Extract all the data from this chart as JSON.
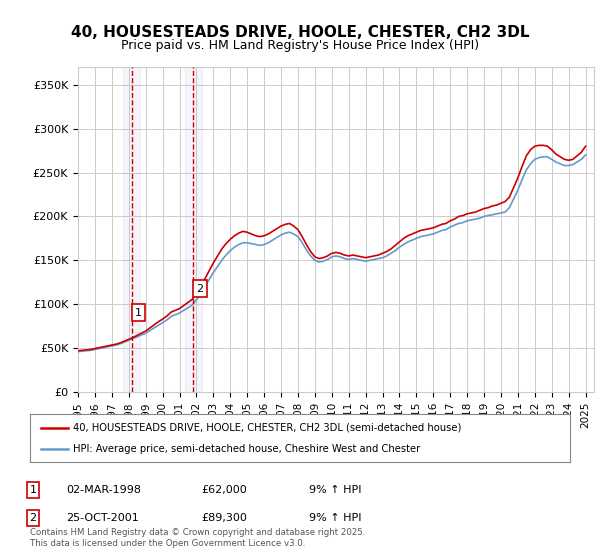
{
  "title": "40, HOUSESTEADS DRIVE, HOOLE, CHESTER, CH2 3DL",
  "subtitle": "Price paid vs. HM Land Registry's House Price Index (HPI)",
  "ylabel_ticks": [
    "£0",
    "£50K",
    "£100K",
    "£150K",
    "£200K",
    "£250K",
    "£300K",
    "£350K"
  ],
  "ytick_values": [
    0,
    50000,
    100000,
    150000,
    200000,
    250000,
    300000,
    350000
  ],
  "ylim": [
    0,
    370000
  ],
  "xlim_start": 1995.0,
  "xlim_end": 2025.5,
  "line1_color": "#cc0000",
  "line2_color": "#6699cc",
  "marker1_date": 1998.17,
  "marker2_date": 2001.81,
  "marker1_price": 62000,
  "marker2_price": 89300,
  "sale1_label": "02-MAR-1998",
  "sale1_price": "£62,000",
  "sale1_hpi": "9% ↑ HPI",
  "sale2_label": "25-OCT-2001",
  "sale2_price": "£89,300",
  "sale2_hpi": "9% ↑ HPI",
  "legend1_text": "40, HOUSESTEADS DRIVE, HOOLE, CHESTER, CH2 3DL (semi-detached house)",
  "legend2_text": "HPI: Average price, semi-detached house, Cheshire West and Chester",
  "footer_text": "Contains HM Land Registry data © Crown copyright and database right 2025.\nThis data is licensed under the Open Government Licence v3.0.",
  "background_color": "#ffffff",
  "grid_color": "#cccccc",
  "hpi_years": [
    1995.0,
    1995.25,
    1995.5,
    1995.75,
    1996.0,
    1996.25,
    1996.5,
    1996.75,
    1997.0,
    1997.25,
    1997.5,
    1997.75,
    1998.0,
    1998.25,
    1998.5,
    1998.75,
    1999.0,
    1999.25,
    1999.5,
    1999.75,
    2000.0,
    2000.25,
    2000.5,
    2000.75,
    2001.0,
    2001.25,
    2001.5,
    2001.75,
    2002.0,
    2002.25,
    2002.5,
    2002.75,
    2003.0,
    2003.25,
    2003.5,
    2003.75,
    2004.0,
    2004.25,
    2004.5,
    2004.75,
    2005.0,
    2005.25,
    2005.5,
    2005.75,
    2006.0,
    2006.25,
    2006.5,
    2006.75,
    2007.0,
    2007.25,
    2007.5,
    2007.75,
    2008.0,
    2008.25,
    2008.5,
    2008.75,
    2009.0,
    2009.25,
    2009.5,
    2009.75,
    2010.0,
    2010.25,
    2010.5,
    2010.75,
    2011.0,
    2011.25,
    2011.5,
    2011.75,
    2012.0,
    2012.25,
    2012.5,
    2012.75,
    2013.0,
    2013.25,
    2013.5,
    2013.75,
    2014.0,
    2014.25,
    2014.5,
    2014.75,
    2015.0,
    2015.25,
    2015.5,
    2015.75,
    2016.0,
    2016.25,
    2016.5,
    2016.75,
    2017.0,
    2017.25,
    2017.5,
    2017.75,
    2018.0,
    2018.25,
    2018.5,
    2018.75,
    2019.0,
    2019.25,
    2019.5,
    2019.75,
    2020.0,
    2020.25,
    2020.5,
    2020.75,
    2021.0,
    2021.25,
    2021.5,
    2021.75,
    2022.0,
    2022.25,
    2022.5,
    2022.75,
    2023.0,
    2023.25,
    2023.5,
    2023.75,
    2024.0,
    2024.25,
    2024.5,
    2024.75,
    2025.0
  ],
  "hpi_values": [
    46000,
    46500,
    47000,
    47500,
    48500,
    49500,
    50500,
    51500,
    52500,
    53500,
    55000,
    57000,
    59000,
    61000,
    63000,
    65000,
    67000,
    70000,
    73000,
    76000,
    79000,
    82000,
    86000,
    88000,
    90000,
    93000,
    96000,
    99000,
    105000,
    112000,
    120000,
    128000,
    136000,
    143000,
    150000,
    156000,
    161000,
    165000,
    168000,
    170000,
    170000,
    169000,
    168000,
    167000,
    168000,
    170000,
    173000,
    176000,
    179000,
    181000,
    182000,
    180000,
    177000,
    170000,
    162000,
    155000,
    150000,
    148000,
    149000,
    151000,
    154000,
    155000,
    154000,
    152000,
    151000,
    152000,
    151000,
    150000,
    149000,
    150000,
    151000,
    152000,
    153000,
    155000,
    158000,
    161000,
    165000,
    168000,
    171000,
    173000,
    175000,
    177000,
    178000,
    179000,
    180000,
    182000,
    184000,
    185000,
    188000,
    190000,
    192000,
    193000,
    195000,
    196000,
    197000,
    198000,
    200000,
    201000,
    202000,
    203000,
    204000,
    205000,
    210000,
    220000,
    230000,
    242000,
    253000,
    260000,
    265000,
    267000,
    268000,
    268000,
    265000,
    262000,
    260000,
    258000,
    258000,
    259000,
    262000,
    265000,
    270000
  ],
  "red_years": [
    1995.0,
    1995.25,
    1995.5,
    1995.75,
    1996.0,
    1996.25,
    1996.5,
    1996.75,
    1997.0,
    1997.25,
    1997.5,
    1997.75,
    1998.0,
    1998.25,
    1998.5,
    1998.75,
    1999.0,
    1999.25,
    1999.5,
    1999.75,
    2000.0,
    2000.25,
    2000.5,
    2000.75,
    2001.0,
    2001.25,
    2001.5,
    2001.75,
    2002.0,
    2002.25,
    2002.5,
    2002.75,
    2003.0,
    2003.25,
    2003.5,
    2003.75,
    2004.0,
    2004.25,
    2004.5,
    2004.75,
    2005.0,
    2005.25,
    2005.5,
    2005.75,
    2006.0,
    2006.25,
    2006.5,
    2006.75,
    2007.0,
    2007.25,
    2007.5,
    2007.75,
    2008.0,
    2008.25,
    2008.5,
    2008.75,
    2009.0,
    2009.25,
    2009.5,
    2009.75,
    2010.0,
    2010.25,
    2010.5,
    2010.75,
    2011.0,
    2011.25,
    2011.5,
    2011.75,
    2012.0,
    2012.25,
    2012.5,
    2012.75,
    2013.0,
    2013.25,
    2013.5,
    2013.75,
    2014.0,
    2014.25,
    2014.5,
    2014.75,
    2015.0,
    2015.25,
    2015.5,
    2015.75,
    2016.0,
    2016.25,
    2016.5,
    2016.75,
    2017.0,
    2017.25,
    2017.5,
    2017.75,
    2018.0,
    2018.25,
    2018.5,
    2018.75,
    2019.0,
    2019.25,
    2019.5,
    2019.75,
    2020.0,
    2020.25,
    2020.5,
    2020.75,
    2021.0,
    2021.25,
    2021.5,
    2021.75,
    2022.0,
    2022.25,
    2022.5,
    2022.75,
    2023.0,
    2023.25,
    2023.5,
    2023.75,
    2024.0,
    2024.25,
    2024.5,
    2024.75,
    2025.0
  ],
  "red_values": [
    47000,
    47500,
    48000,
    48500,
    49500,
    50500,
    51500,
    52500,
    53500,
    54500,
    56000,
    58000,
    60000,
    62000,
    64500,
    67000,
    69500,
    73000,
    76500,
    80000,
    83000,
    86500,
    91000,
    93000,
    95000,
    98500,
    102000,
    105500,
    112000,
    120000,
    129000,
    138000,
    147000,
    155000,
    163000,
    169000,
    174000,
    178000,
    181000,
    183000,
    182000,
    180000,
    178000,
    177000,
    178000,
    180000,
    183000,
    186000,
    189000,
    191000,
    192000,
    189000,
    185000,
    177000,
    168000,
    160000,
    154000,
    152000,
    153000,
    155000,
    158000,
    159000,
    158000,
    156000,
    155000,
    156000,
    155000,
    154000,
    153000,
    154000,
    155000,
    156000,
    158000,
    160000,
    163000,
    167000,
    171000,
    175000,
    178000,
    180000,
    182000,
    184000,
    185000,
    186000,
    187000,
    189000,
    191000,
    192000,
    195000,
    197000,
    200000,
    201000,
    203000,
    204000,
    205000,
    207000,
    209000,
    210000,
    212000,
    213000,
    215000,
    217000,
    222000,
    233000,
    244000,
    257000,
    269000,
    276000,
    280000,
    281000,
    281000,
    280000,
    276000,
    271000,
    268000,
    265000,
    264000,
    265000,
    269000,
    273000,
    280000
  ],
  "xtick_years": [
    1995,
    1996,
    1997,
    1998,
    1999,
    2000,
    2001,
    2002,
    2003,
    2004,
    2005,
    2006,
    2007,
    2008,
    2009,
    2010,
    2011,
    2012,
    2013,
    2014,
    2015,
    2016,
    2017,
    2018,
    2019,
    2020,
    2021,
    2022,
    2023,
    2024,
    2025
  ]
}
